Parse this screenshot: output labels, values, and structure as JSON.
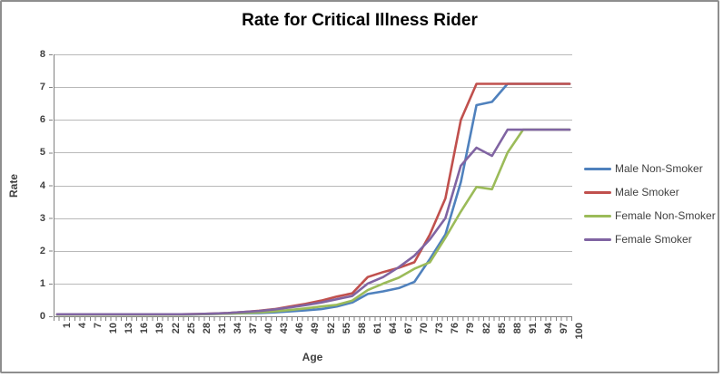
{
  "chart_data": {
    "type": "line",
    "title": "Rate for Critical Illness Rider",
    "xlabel": "Age",
    "ylabel": "Rate",
    "x": [
      1,
      4,
      7,
      10,
      13,
      16,
      19,
      22,
      25,
      28,
      31,
      34,
      37,
      40,
      43,
      46,
      49,
      52,
      55,
      58,
      61,
      64,
      67,
      70,
      73,
      76,
      79,
      82,
      85,
      88,
      91,
      94,
      97,
      100
    ],
    "series": [
      {
        "name": "Male Non-Smoker",
        "color": "#4F81BD",
        "values": [
          0.05,
          0.05,
          0.05,
          0.05,
          0.05,
          0.05,
          0.05,
          0.05,
          0.05,
          0.06,
          0.07,
          0.08,
          0.09,
          0.1,
          0.12,
          0.15,
          0.18,
          0.22,
          0.3,
          0.42,
          0.68,
          0.76,
          0.86,
          1.05,
          1.75,
          2.5,
          4.1,
          6.45,
          6.55,
          7.1,
          7.1,
          7.1,
          7.1,
          7.1
        ]
      },
      {
        "name": "Male Smoker",
        "color": "#C0504D",
        "values": [
          0.06,
          0.06,
          0.06,
          0.06,
          0.06,
          0.06,
          0.06,
          0.06,
          0.06,
          0.07,
          0.08,
          0.1,
          0.13,
          0.17,
          0.22,
          0.3,
          0.38,
          0.48,
          0.6,
          0.7,
          1.2,
          1.35,
          1.48,
          1.65,
          2.5,
          3.6,
          6.0,
          7.1,
          7.1,
          7.1,
          7.1,
          7.1,
          7.1,
          7.1
        ]
      },
      {
        "name": "Female Non-Smoker",
        "color": "#9BBB59",
        "values": [
          0.05,
          0.05,
          0.05,
          0.05,
          0.05,
          0.05,
          0.05,
          0.05,
          0.05,
          0.06,
          0.07,
          0.08,
          0.1,
          0.12,
          0.15,
          0.19,
          0.24,
          0.3,
          0.35,
          0.48,
          0.8,
          1.0,
          1.18,
          1.45,
          1.65,
          2.4,
          3.2,
          3.95,
          3.88,
          5.0,
          5.7,
          5.7,
          5.7,
          5.7
        ]
      },
      {
        "name": "Female Smoker",
        "color": "#8064A2",
        "values": [
          0.06,
          0.06,
          0.06,
          0.06,
          0.06,
          0.06,
          0.06,
          0.06,
          0.06,
          0.07,
          0.08,
          0.1,
          0.13,
          0.16,
          0.21,
          0.27,
          0.34,
          0.42,
          0.52,
          0.62,
          1.0,
          1.2,
          1.5,
          1.85,
          2.35,
          3.0,
          4.6,
          5.15,
          4.9,
          5.7,
          5.7,
          5.7,
          5.7,
          5.7
        ]
      }
    ],
    "xlim": [
      1,
      100
    ],
    "ylim": [
      0,
      8
    ],
    "yticks": [
      0,
      1,
      2,
      3,
      4,
      5,
      6,
      7,
      8
    ],
    "grid": true,
    "legend_position": "right"
  },
  "styles": {
    "grid_color": "#b9b9b9",
    "axis_color": "#808080",
    "tick_text_color": "#404040",
    "title_color": "#000000",
    "background": "#ffffff",
    "frame_border_color": "#8e8e8e"
  }
}
